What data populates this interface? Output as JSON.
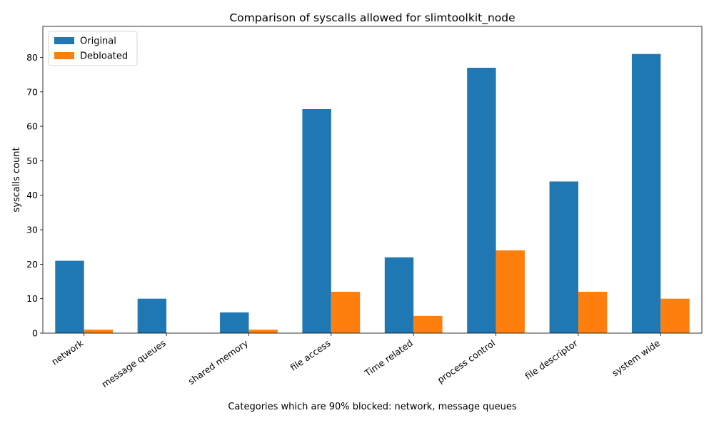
{
  "chart_data": {
    "type": "bar",
    "title": "Comparison of syscalls allowed for slimtoolkit_node",
    "xlabel": "Categories which are 90% blocked: network, message queues",
    "ylabel": "syscalls count",
    "categories": [
      "network",
      "message queues",
      "shared memory",
      "file access",
      "Time related",
      "process control",
      "file descriptor",
      "system wide"
    ],
    "series": [
      {
        "name": "Original",
        "color": "#1f77b4",
        "values": [
          21,
          10,
          6,
          65,
          22,
          77,
          44,
          81
        ]
      },
      {
        "name": "Debloated",
        "color": "#ff7f0e",
        "values": [
          1,
          0,
          1,
          12,
          5,
          24,
          12,
          10
        ]
      }
    ],
    "ylim": [
      0,
      89
    ],
    "yticks": [
      0,
      10,
      20,
      30,
      40,
      50,
      60,
      70,
      80
    ],
    "grid": false,
    "legend_position": "top-left"
  }
}
